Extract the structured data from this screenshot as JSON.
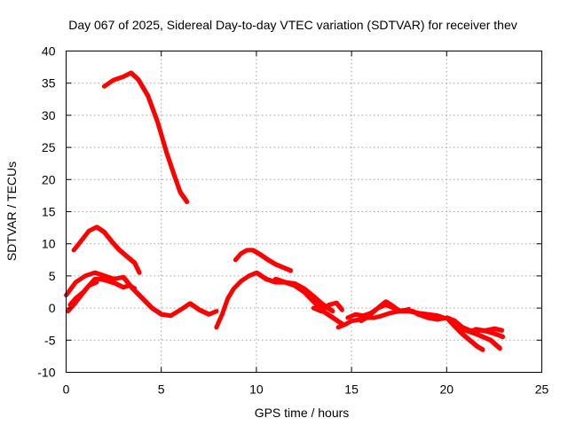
{
  "chart_data": {
    "type": "line",
    "title": "Day 067 of 2025, Sidereal Day-to-day VTEC variation (SDTVAR) for receiver thev",
    "xlabel": "GPS time / hours",
    "ylabel": "SDTVAR / TECUs",
    "xlim": [
      0,
      25
    ],
    "ylim": [
      -10,
      40
    ],
    "xticks": [
      0,
      5,
      10,
      15,
      20,
      25
    ],
    "yticks": [
      -10,
      -5,
      0,
      5,
      10,
      15,
      20,
      25,
      30,
      35,
      40
    ],
    "grid": true,
    "legend": "none",
    "series_color": "#ff0000",
    "series": [
      {
        "name": "track-1",
        "x": [
          2.0,
          2.5,
          3.0,
          3.4,
          3.8,
          4.3,
          4.8,
          5.3,
          5.7,
          6.0,
          6.35
        ],
        "y": [
          34.5,
          35.5,
          36.0,
          36.6,
          35.5,
          33.0,
          29.0,
          24.0,
          20.5,
          18.0,
          16.5
        ]
      },
      {
        "name": "track-2",
        "x": [
          0.4,
          0.8,
          1.2,
          1.6,
          2.0,
          2.4,
          2.8,
          3.2,
          3.6,
          3.85
        ],
        "y": [
          9.0,
          10.5,
          12.0,
          12.6,
          11.8,
          10.3,
          9.0,
          8.0,
          7.0,
          5.5
        ]
      },
      {
        "name": "track-3",
        "x": [
          0.0,
          0.5,
          1.0,
          1.5,
          2.0,
          2.5,
          3.0,
          3.5,
          4.0,
          4.5,
          5.0,
          5.5,
          6.0,
          6.5,
          7.0,
          7.5,
          7.9
        ],
        "y": [
          2.0,
          4.0,
          5.0,
          5.5,
          5.0,
          4.5,
          4.8,
          3.0,
          1.5,
          0.0,
          -1.0,
          -1.2,
          -0.3,
          0.7,
          -0.3,
          -1.0,
          -0.5
        ]
      },
      {
        "name": "track-4",
        "x": [
          0.1,
          0.4,
          0.8,
          1.2,
          1.5,
          1.8,
          2.2,
          2.6,
          3.0,
          3.3,
          3.6
        ],
        "y": [
          -0.5,
          0.5,
          2.0,
          3.5,
          4.5,
          4.5,
          4.2,
          3.8,
          3.2,
          3.5,
          3.0
        ]
      },
      {
        "name": "track-5",
        "x": [
          0.2,
          0.5,
          0.9,
          1.2,
          1.6
        ],
        "y": [
          0.5,
          1.5,
          2.5,
          3.5,
          4.0
        ]
      },
      {
        "name": "track-6",
        "x": [
          7.9,
          8.2,
          8.5,
          8.8,
          9.2,
          9.6,
          10.0,
          10.5,
          11.0,
          11.5,
          12.0,
          12.5,
          13.0,
          13.5,
          14.0,
          14.5
        ],
        "y": [
          -3.0,
          -1.0,
          1.5,
          3.0,
          4.2,
          5.0,
          5.5,
          4.5,
          4.0,
          4.0,
          3.5,
          2.5,
          1.0,
          -0.5,
          -1.5,
          -2.5
        ]
      },
      {
        "name": "track-7",
        "x": [
          8.9,
          9.2,
          9.5,
          9.8,
          10.2,
          10.6,
          11.0,
          11.4,
          11.8
        ],
        "y": [
          7.5,
          8.5,
          9.0,
          9.0,
          8.3,
          7.5,
          6.8,
          6.3,
          5.8
        ]
      },
      {
        "name": "track-8",
        "x": [
          11.0,
          11.5,
          12.0,
          12.5,
          13.0,
          13.5,
          14.0
        ],
        "y": [
          4.5,
          4.0,
          3.8,
          3.0,
          1.8,
          0.5,
          -0.5
        ]
      },
      {
        "name": "track-9",
        "x": [
          13.0,
          13.4,
          13.8,
          14.2,
          14.5
        ],
        "y": [
          0.0,
          -0.5,
          0.5,
          0.8,
          -0.3
        ]
      },
      {
        "name": "track-10",
        "x": [
          14.3,
          14.7,
          15.0,
          15.4,
          15.8,
          16.2,
          16.6,
          17.0,
          17.5,
          18.0,
          18.5,
          19.0,
          19.5,
          19.8
        ],
        "y": [
          -3.0,
          -2.5,
          -2.0,
          -1.8,
          -1.5,
          -1.5,
          -1.2,
          -0.8,
          -0.5,
          -0.5,
          -0.8,
          -1.0,
          -1.2,
          -1.5
        ]
      },
      {
        "name": "track-11",
        "x": [
          15.5,
          15.8,
          16.2,
          16.5,
          16.8,
          17.2,
          17.5,
          17.8,
          18.2,
          18.5
        ],
        "y": [
          -2.0,
          -1.5,
          -0.5,
          0.3,
          1.0,
          0.2,
          -0.5,
          -0.3,
          -0.5,
          -1.0
        ]
      },
      {
        "name": "track-12",
        "x": [
          14.8,
          15.2,
          15.6,
          16.0,
          16.4,
          16.8,
          17.2,
          17.6,
          18.0
        ],
        "y": [
          -1.5,
          -1.0,
          -1.2,
          -0.8,
          0.0,
          0.5,
          0.0,
          -0.5,
          -0.2
        ]
      },
      {
        "name": "track-13",
        "x": [
          18.5,
          19.0,
          19.5,
          20.0,
          20.4,
          20.8,
          21.2,
          21.6,
          22.0,
          22.5,
          22.9
        ],
        "y": [
          -1.0,
          -1.5,
          -1.8,
          -1.5,
          -2.0,
          -3.0,
          -3.5,
          -3.5,
          -3.5,
          -3.2,
          -3.5
        ]
      },
      {
        "name": "track-14",
        "x": [
          20.0,
          20.4,
          20.8,
          21.2,
          21.6,
          21.9
        ],
        "y": [
          -1.5,
          -2.8,
          -4.0,
          -5.0,
          -6.0,
          -6.5
        ]
      },
      {
        "name": "track-15",
        "x": [
          20.5,
          21.0,
          21.5,
          21.9,
          22.3,
          22.6,
          22.8
        ],
        "y": [
          -3.0,
          -3.5,
          -4.0,
          -4.5,
          -5.0,
          -5.8,
          -6.3
        ]
      },
      {
        "name": "track-16",
        "x": [
          21.5,
          21.9,
          22.3,
          22.7,
          22.95
        ],
        "y": [
          -3.3,
          -3.5,
          -3.8,
          -4.2,
          -4.5
        ]
      }
    ]
  }
}
